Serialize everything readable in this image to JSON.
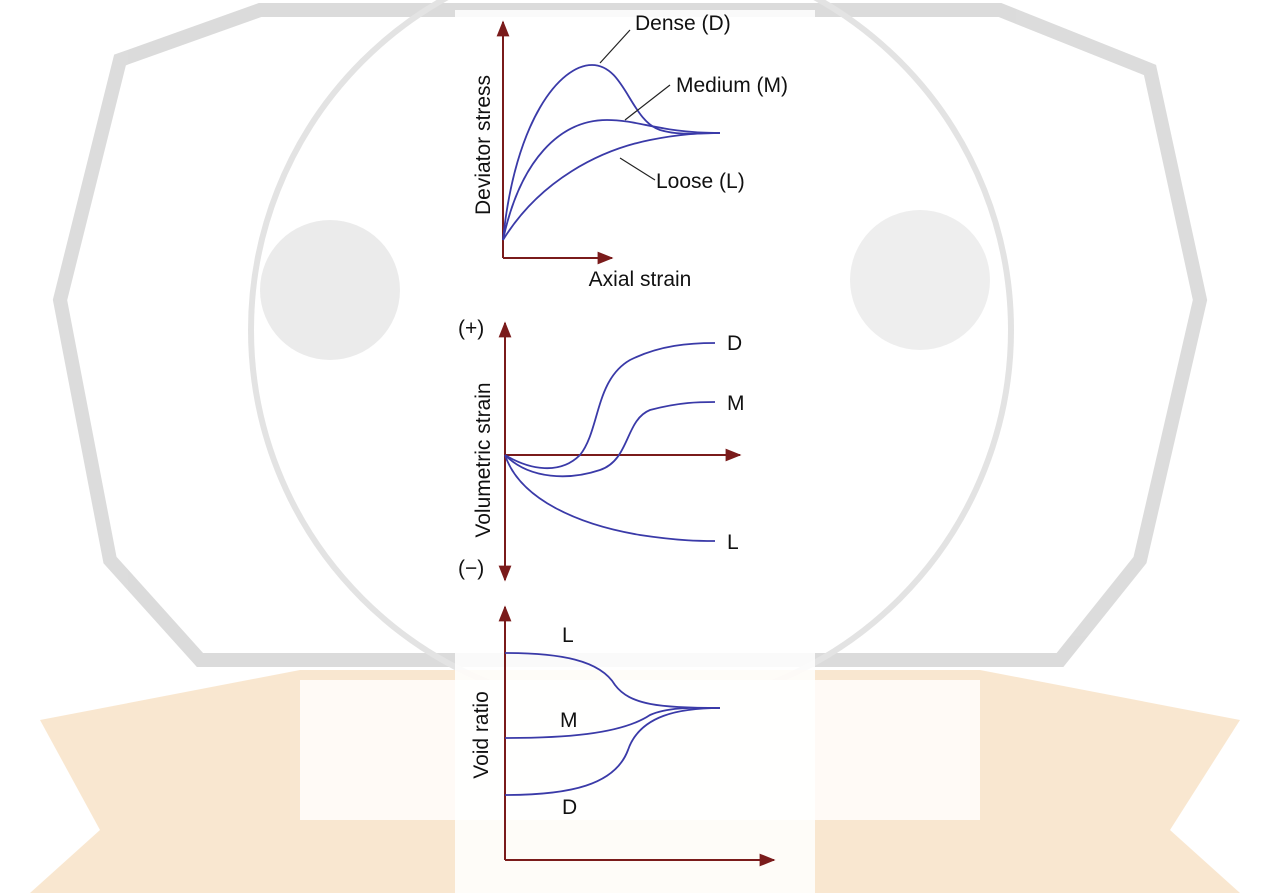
{
  "panels": [
    {
      "y_label": "Deviator stress",
      "x_label": "Axial strain",
      "curve_labels": [
        "Dense (D)",
        "Medium (M)",
        "Loose (L)"
      ]
    },
    {
      "y_label": "Volumetric strain",
      "positive": "(+)",
      "negative": "(−)",
      "curve_labels": [
        "D",
        "M",
        "L"
      ]
    },
    {
      "y_label": "Void ratio",
      "curve_labels": [
        "L",
        "M",
        "D"
      ]
    }
  ]
}
